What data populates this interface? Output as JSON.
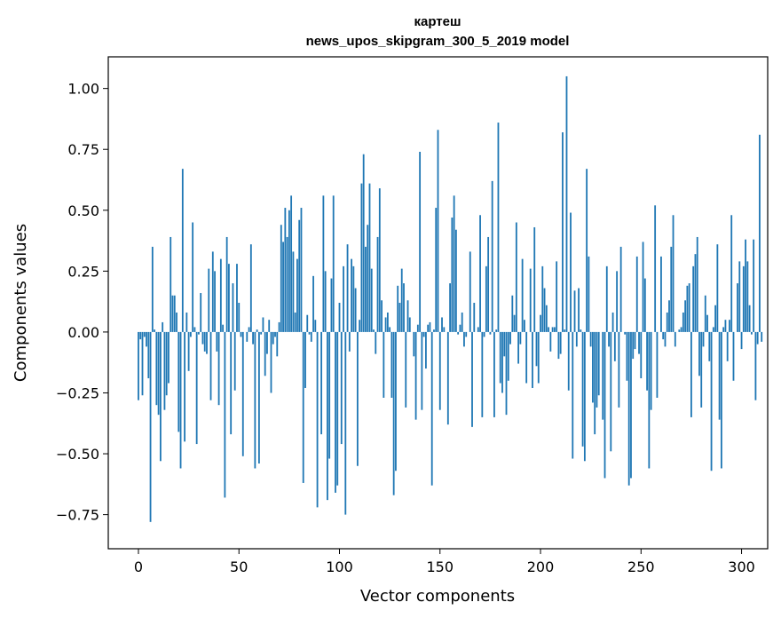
{
  "chart_data": {
    "type": "bar",
    "title": "картеш",
    "subtitle": "news_upos_skipgram_300_5_2019 model",
    "xlabel": "Vector components",
    "ylabel": "Components values",
    "xlim": [
      -15,
      313
    ],
    "ylim": [
      -0.89,
      1.13
    ],
    "xticks": [
      0,
      50,
      100,
      150,
      200,
      250,
      300
    ],
    "xtick_labels": [
      "0",
      "50",
      "100",
      "150",
      "200",
      "250",
      "300"
    ],
    "yticks": [
      -0.75,
      -0.5,
      -0.25,
      0.0,
      0.25,
      0.5,
      0.75,
      1.0
    ],
    "ytick_labels": [
      "−0.75",
      "−0.50",
      "−0.25",
      "0.00",
      "0.25",
      "0.50",
      "0.75",
      "1.00"
    ],
    "grid": false,
    "bar_color": "#1f77b4",
    "values": [
      -0.28,
      -0.03,
      -0.26,
      -0.02,
      -0.06,
      -0.19,
      -0.78,
      0.35,
      0.01,
      -0.3,
      -0.34,
      -0.53,
      0.04,
      -0.32,
      -0.26,
      -0.21,
      0.39,
      0.15,
      0.15,
      0.08,
      -0.41,
      -0.56,
      0.67,
      -0.45,
      0.08,
      -0.16,
      -0.02,
      0.45,
      0.02,
      -0.46,
      -0.01,
      0.16,
      -0.05,
      -0.08,
      -0.09,
      0.26,
      -0.28,
      0.33,
      0.25,
      -0.08,
      -0.3,
      0.3,
      0.03,
      -0.68,
      0.39,
      0.28,
      -0.42,
      0.2,
      -0.24,
      0.28,
      0.12,
      -0.02,
      -0.51,
      0.0,
      -0.04,
      0.02,
      0.36,
      -0.05,
      -0.56,
      0.01,
      -0.54,
      -0.01,
      0.06,
      -0.18,
      -0.09,
      0.05,
      -0.25,
      -0.05,
      -0.02,
      -0.1,
      0.04,
      0.44,
      0.37,
      0.51,
      0.39,
      0.5,
      0.56,
      0.33,
      0.08,
      0.3,
      0.46,
      0.51,
      -0.62,
      -0.23,
      0.07,
      -0.01,
      -0.04,
      0.23,
      0.05,
      -0.72,
      0.0,
      -0.42,
      0.56,
      0.25,
      -0.69,
      -0.52,
      0.22,
      0.56,
      -0.66,
      -0.63,
      0.12,
      -0.46,
      0.27,
      -0.75,
      0.36,
      -0.08,
      0.3,
      0.27,
      0.18,
      -0.55,
      0.05,
      0.61,
      0.73,
      0.35,
      0.44,
      0.61,
      0.26,
      0.01,
      -0.09,
      0.39,
      0.59,
      0.13,
      -0.27,
      0.06,
      0.08,
      0.02,
      -0.27,
      -0.67,
      -0.57,
      0.19,
      0.12,
      0.26,
      0.2,
      -0.31,
      0.13,
      0.06,
      0.0,
      -0.1,
      -0.36,
      0.03,
      0.74,
      -0.32,
      -0.02,
      -0.15,
      0.03,
      0.04,
      -0.63,
      0.01,
      0.51,
      0.83,
      -0.32,
      0.06,
      0.02,
      0.0,
      -0.38,
      0.2,
      0.47,
      0.56,
      0.42,
      -0.01,
      0.03,
      0.08,
      -0.06,
      -0.02,
      0.0,
      0.33,
      -0.39,
      0.12,
      0.0,
      0.02,
      0.48,
      -0.35,
      -0.02,
      0.27,
      0.39,
      -0.01,
      0.62,
      -0.35,
      0.01,
      0.86,
      -0.21,
      -0.25,
      -0.1,
      -0.34,
      -0.2,
      -0.05,
      0.15,
      0.07,
      0.45,
      -0.13,
      -0.05,
      0.3,
      0.05,
      -0.21,
      0.0,
      0.26,
      -0.23,
      0.43,
      -0.14,
      -0.21,
      0.07,
      0.27,
      0.18,
      0.11,
      0.02,
      -0.08,
      0.02,
      0.02,
      0.29,
      -0.11,
      -0.09,
      0.82,
      0.01,
      1.05,
      -0.24,
      0.49,
      -0.52,
      0.17,
      -0.06,
      0.18,
      0.01,
      -0.47,
      -0.53,
      0.67,
      0.31,
      -0.06,
      -0.29,
      -0.42,
      -0.31,
      -0.26,
      0.0,
      -0.36,
      -0.6,
      0.27,
      -0.06,
      -0.49,
      0.08,
      -0.12,
      0.25,
      -0.31,
      0.35,
      0.0,
      -0.01,
      -0.2,
      -0.63,
      -0.6,
      -0.11,
      -0.07,
      0.31,
      -0.09,
      -0.19,
      0.37,
      0.22,
      -0.24,
      -0.56,
      -0.32,
      0.0,
      0.52,
      -0.27,
      0.0,
      0.31,
      -0.03,
      -0.06,
      0.08,
      0.13,
      0.35,
      0.48,
      -0.06,
      0.0,
      0.01,
      0.02,
      0.08,
      0.13,
      0.19,
      0.2,
      -0.35,
      0.27,
      0.32,
      0.39,
      -0.18,
      -0.31,
      -0.06,
      0.15,
      0.07,
      -0.12,
      -0.57,
      0.02,
      0.11,
      0.36,
      -0.36,
      -0.56,
      0.02,
      0.05,
      -0.12,
      0.05,
      0.48,
      -0.2,
      0.0,
      0.2,
      0.29,
      -0.07,
      0.27,
      0.38,
      0.29,
      0.11,
      -0.01,
      0.38,
      -0.28,
      -0.05,
      0.81,
      -0.04
    ]
  }
}
